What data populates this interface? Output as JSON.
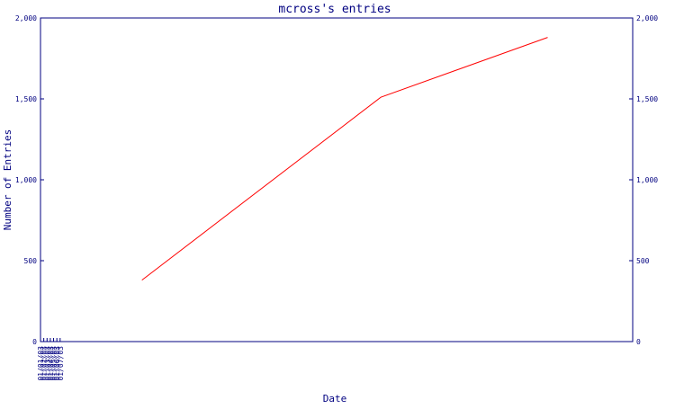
{
  "chart_data": {
    "type": "line",
    "title": "mcross's entries",
    "xlabel": "Date",
    "ylabel": "Number of Entries",
    "x_ticks": [
      "01/01/03",
      "01/02/03",
      "01/03/03",
      "01/04/03",
      "01/05/03",
      "01/06/03",
      "01/07/03"
    ],
    "y_ticks": [
      "0",
      "500",
      "1,000",
      "1,500",
      "2,000"
    ],
    "right_y_ticks": [
      "0",
      "500",
      "1,000",
      "1,500",
      "2,000"
    ],
    "ylim": [
      0,
      2000
    ],
    "xlim": [
      "2003-01-01",
      "2003-07-01"
    ],
    "grid": false,
    "series": [
      {
        "color": "#ff0000",
        "points": [
          {
            "x": "2003-02-01",
            "y": 380
          },
          {
            "x": "2003-04-15",
            "y": 1510
          },
          {
            "x": "2003-06-05",
            "y": 1880
          }
        ]
      }
    ],
    "colors": {
      "axis": "#000080",
      "line": "#ff0000",
      "background": "#ffffff"
    }
  }
}
